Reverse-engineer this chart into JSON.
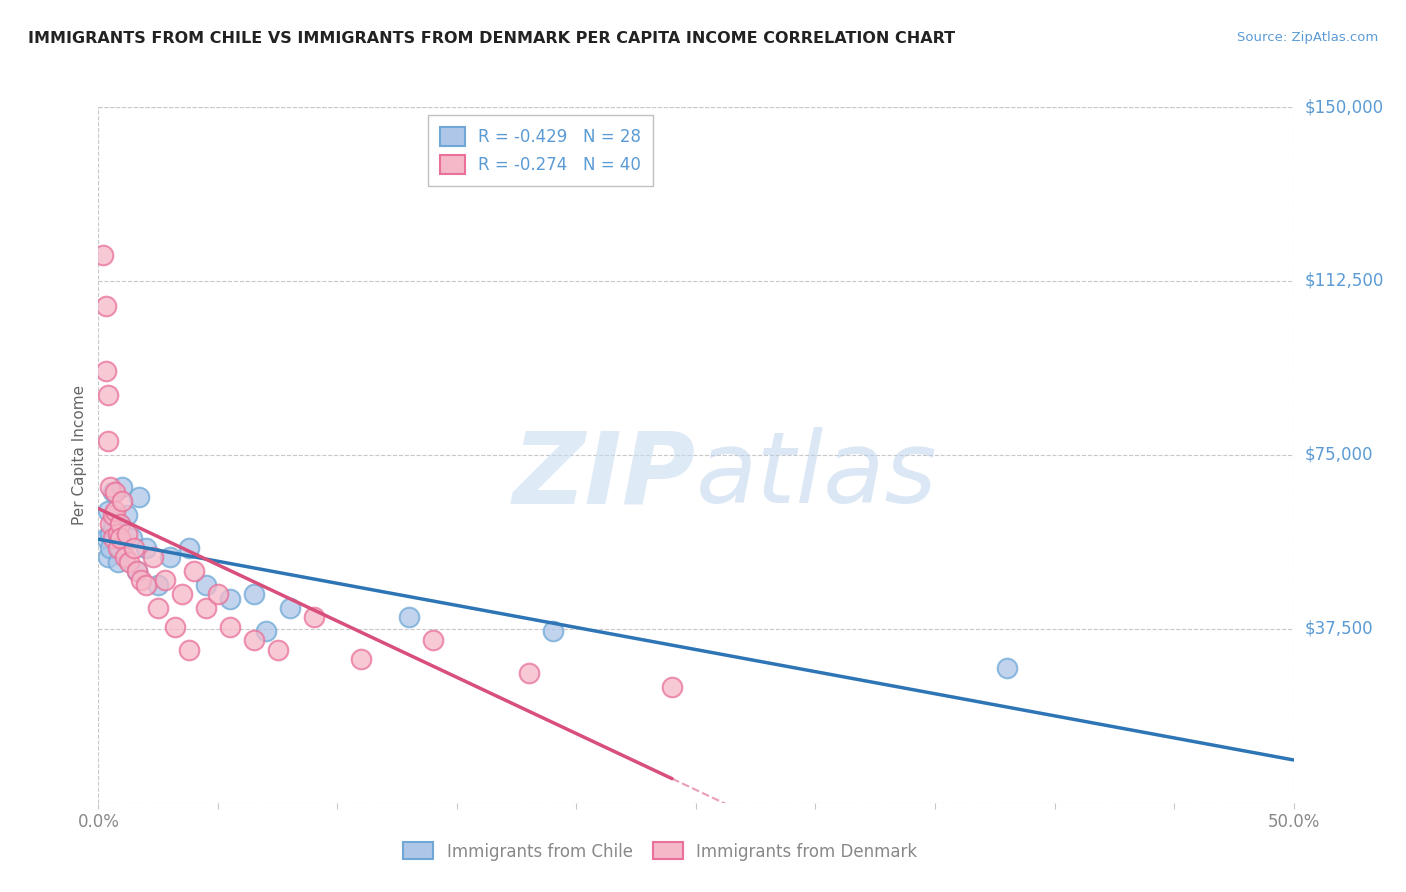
{
  "title": "IMMIGRANTS FROM CHILE VS IMMIGRANTS FROM DENMARK PER CAPITA INCOME CORRELATION CHART",
  "source": "Source: ZipAtlas.com",
  "ylabel": "Per Capita Income",
  "yticks": [
    0,
    37500,
    75000,
    112500,
    150000
  ],
  "ytick_labels": [
    "",
    "$37,500",
    "$75,000",
    "$112,500",
    "$150,000"
  ],
  "xlim": [
    0.0,
    0.5
  ],
  "ylim": [
    0,
    150000
  ],
  "chile_color": "#aec6e8",
  "chile_color_edge": "#6fa8d6",
  "denmark_color": "#f5b8c8",
  "denmark_color_edge": "#e8709a",
  "chile_R": -0.429,
  "chile_N": 28,
  "denmark_R": -0.274,
  "denmark_N": 40,
  "chile_line_color": "#2e75b6",
  "denmark_line_color": "#d94f7c",
  "chile_scatter_x": [
    0.003,
    0.004,
    0.004,
    0.005,
    0.005,
    0.006,
    0.006,
    0.007,
    0.008,
    0.009,
    0.009,
    0.01,
    0.012,
    0.014,
    0.016,
    0.017,
    0.02,
    0.025,
    0.03,
    0.038,
    0.045,
    0.055,
    0.065,
    0.07,
    0.08,
    0.13,
    0.19,
    0.38
  ],
  "chile_scatter_y": [
    57000,
    63000,
    53000,
    58000,
    55000,
    67000,
    60000,
    57000,
    52000,
    60000,
    55000,
    68000,
    62000,
    57000,
    50000,
    66000,
    55000,
    47000,
    53000,
    55000,
    47000,
    44000,
    45000,
    37000,
    42000,
    40000,
    37000,
    29000
  ],
  "denmark_scatter_x": [
    0.002,
    0.003,
    0.003,
    0.004,
    0.004,
    0.005,
    0.005,
    0.006,
    0.006,
    0.007,
    0.007,
    0.008,
    0.008,
    0.009,
    0.009,
    0.01,
    0.011,
    0.012,
    0.013,
    0.015,
    0.016,
    0.018,
    0.02,
    0.023,
    0.025,
    0.028,
    0.032,
    0.035,
    0.038,
    0.04,
    0.045,
    0.05,
    0.055,
    0.065,
    0.075,
    0.09,
    0.11,
    0.14,
    0.18,
    0.24
  ],
  "denmark_scatter_y": [
    118000,
    107000,
    93000,
    78000,
    88000,
    68000,
    60000,
    62000,
    57000,
    67000,
    63000,
    58000,
    55000,
    60000,
    57000,
    65000,
    53000,
    58000,
    52000,
    55000,
    50000,
    48000,
    47000,
    53000,
    42000,
    48000,
    38000,
    45000,
    33000,
    50000,
    42000,
    45000,
    38000,
    35000,
    33000,
    40000,
    31000,
    35000,
    28000,
    25000
  ],
  "background_color": "#ffffff",
  "grid_color": "#c8c8c8",
  "title_color": "#222222",
  "right_label_color": "#5b9bd5",
  "watermark_color": "#ddeeff",
  "axis_tick_color": "#888888",
  "ylabel_color": "#666666"
}
